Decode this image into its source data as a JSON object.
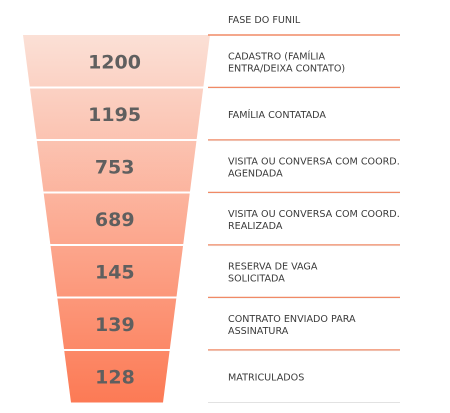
{
  "chart_data": {
    "type": "funnel",
    "header": "FASE DO FUNIL",
    "stages": [
      {
        "value": 1200,
        "label": [
          "CADASTRO (FAMÍLIA",
          "ENTRA/DEIXA CONTATO)"
        ]
      },
      {
        "value": 1195,
        "label": [
          "FAMÍLIA CONTATADA"
        ]
      },
      {
        "value": 753,
        "label": [
          "VISITA OU CONVERSA COM COORD.",
          "AGENDADA"
        ]
      },
      {
        "value": 689,
        "label": [
          "VISITA OU CONVERSA COM COORD.",
          "REALIZADA"
        ]
      },
      {
        "value": 145,
        "label": [
          "RESERVA DE VAGA",
          "SOLICITADA"
        ]
      },
      {
        "value": 139,
        "label": [
          "CONTRATO ENVIADO PARA",
          "ASSINATURA"
        ]
      },
      {
        "value": 128,
        "label": [
          "MATRICULADOS"
        ]
      }
    ],
    "colors": {
      "top": "#fbe0d6",
      "bottom": "#fc7a55",
      "divider": "#f08a66",
      "text": "#5f5f5f"
    }
  }
}
